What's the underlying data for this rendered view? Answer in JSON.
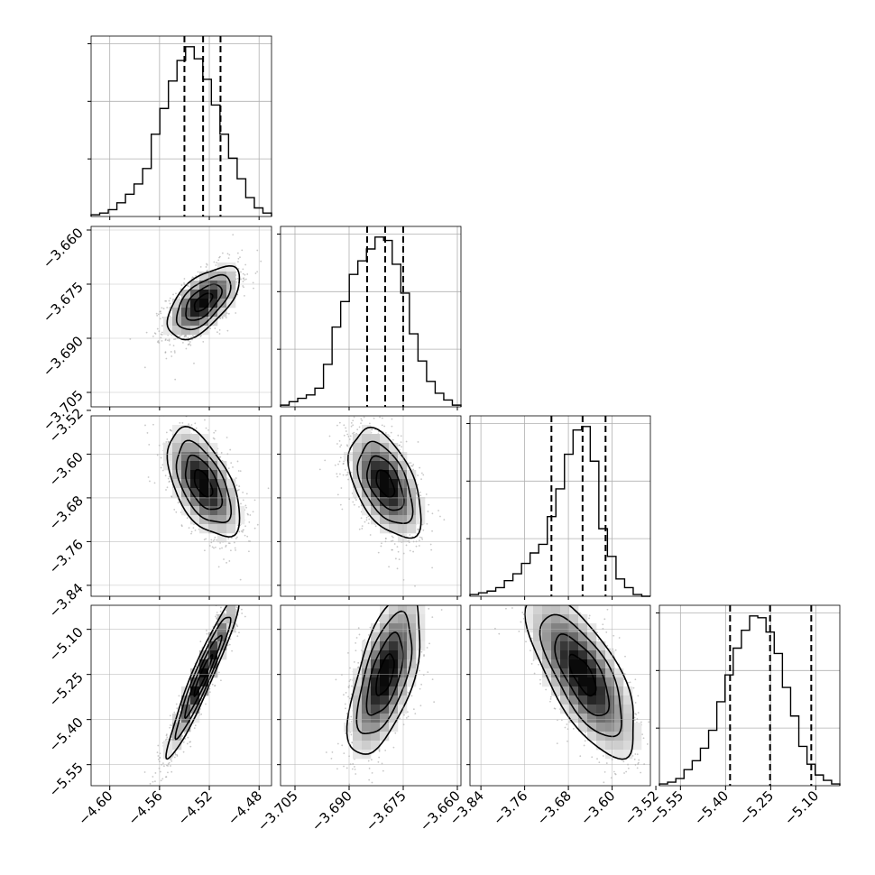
{
  "chart_data": {
    "type": "corner",
    "n_params": 4,
    "params": [
      {
        "median": -4.525,
        "q16": -4.54,
        "q84": -4.511,
        "range": [
          -4.615,
          -4.47
        ],
        "ticks": [
          -4.6,
          -4.56,
          -4.52,
          -4.48
        ],
        "tick_labels": [
          "−4.60",
          "−4.56",
          "−4.52",
          "−4.48"
        ],
        "hist_counts": [
          1,
          2,
          4,
          8,
          13,
          19,
          28,
          48,
          63,
          79,
          91,
          99,
          92,
          80,
          65,
          48,
          34,
          22,
          11,
          5,
          2
        ]
      },
      {
        "median": -3.68,
        "q16": -3.685,
        "q84": -3.675,
        "range": [
          -3.709,
          -3.659
        ],
        "ticks": [
          -3.705,
          -3.69,
          -3.675,
          -3.66
        ],
        "tick_labels": [
          "−3.705",
          "−3.690",
          "−3.675",
          "−3.660"
        ],
        "hist_counts": [
          1,
          3,
          5,
          7,
          11,
          25,
          47,
          62,
          78,
          86,
          93,
          100,
          98,
          84,
          67,
          43,
          27,
          15,
          8,
          4,
          1
        ]
      },
      {
        "median": -3.654,
        "q16": -3.711,
        "q84": -3.612,
        "range": [
          -3.86,
          -3.53
        ],
        "ticks": [
          -3.84,
          -3.76,
          -3.68,
          -3.6,
          -3.52
        ],
        "tick_labels": [
          "−3.84",
          "−3.76",
          "−3.68",
          "−3.60",
          "−3.52"
        ],
        "hist_counts": [
          1,
          2,
          3,
          5,
          9,
          13,
          19,
          25,
          30,
          46,
          62,
          82,
          96,
          98,
          78,
          39,
          23,
          10,
          5,
          1,
          0
        ]
      },
      {
        "median": -5.252,
        "q16": -5.385,
        "q84": -5.115,
        "range": [
          -5.62,
          -5.02
        ],
        "ticks": [
          -5.55,
          -5.4,
          -5.25,
          -5.1
        ],
        "tick_labels": [
          "−5.55",
          "−5.40",
          "−5.25",
          "−5.10"
        ],
        "hist_counts": [
          1,
          2,
          4,
          9,
          14,
          21,
          31,
          47,
          62,
          77,
          87,
          95,
          94,
          86,
          74,
          55,
          39,
          22,
          12,
          6,
          3,
          1
        ]
      }
    ],
    "correlations": [
      [
        1,
        0.6,
        -0.55,
        0.95
      ],
      [
        0.6,
        1,
        -0.5,
        0.6
      ],
      [
        -0.55,
        -0.5,
        1,
        -0.7
      ],
      [
        0.95,
        0.6,
        -0.7,
        1
      ]
    ],
    "quantile_lines": "dashed",
    "grid": true,
    "title": "",
    "xlabel": "",
    "ylabel": ""
  },
  "colors": {
    "line": "#000000",
    "grid": "#b0b0b0",
    "scatter": "#9a9a9a"
  }
}
